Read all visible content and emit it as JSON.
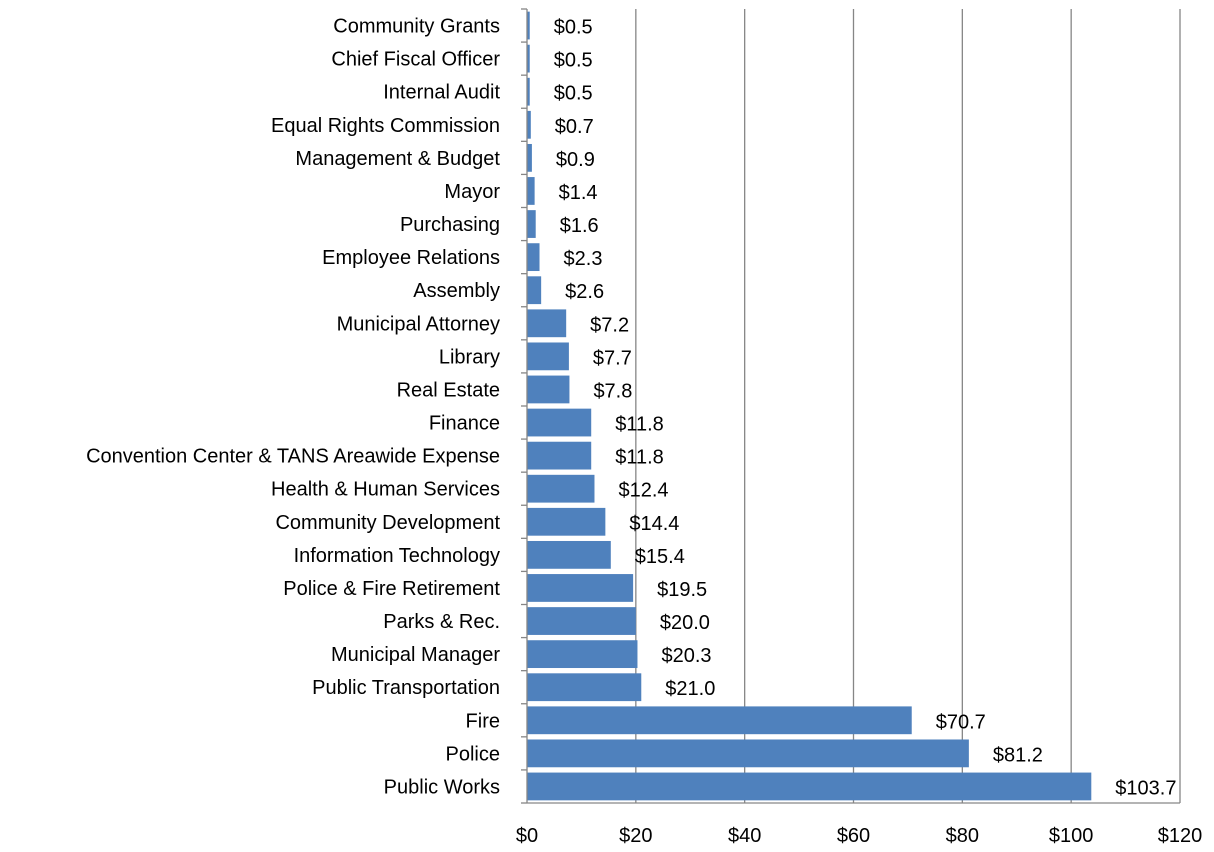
{
  "chart_data": {
    "type": "bar",
    "orientation": "horizontal",
    "title": "",
    "xlabel": "",
    "ylabel": "",
    "xlim": [
      0,
      120
    ],
    "x_ticks": [
      0,
      20,
      40,
      60,
      80,
      100,
      120
    ],
    "x_tick_labels": [
      "$0",
      "$20",
      "$40",
      "$60",
      "$80",
      "$100",
      "$120"
    ],
    "grid": "vertical",
    "legend": "none",
    "bar_color": "#4F81BD",
    "categories": [
      "Community Grants",
      "Chief Fiscal Officer",
      "Internal Audit",
      "Equal Rights Commission",
      "Management & Budget",
      "Mayor",
      "Purchasing",
      "Employee Relations",
      "Assembly",
      "Municipal Attorney",
      "Library",
      "Real Estate",
      "Finance",
      "Convention Center & TANS Areawide Expense",
      "Health & Human Services",
      "Community Development",
      "Information Technology",
      "Police & Fire Retirement",
      "Parks & Rec.",
      "Municipal Manager",
      "Public Transportation",
      "Fire",
      "Police",
      "Public Works"
    ],
    "values": [
      0.5,
      0.5,
      0.5,
      0.7,
      0.9,
      1.4,
      1.6,
      2.3,
      2.6,
      7.2,
      7.7,
      7.8,
      11.8,
      11.8,
      12.4,
      14.4,
      15.4,
      19.5,
      20.0,
      20.3,
      21.0,
      70.7,
      81.2,
      103.7
    ],
    "value_labels": [
      "$0.5",
      "$0.5",
      "$0.5",
      "$0.7",
      "$0.9",
      "$1.4",
      "$1.6",
      "$2.3",
      "$2.6",
      "$7.2",
      "$7.7",
      "$7.8",
      "$11.8",
      "$11.8",
      "$12.4",
      "$14.4",
      "$15.4",
      "$19.5",
      "$20.0",
      "$20.3",
      "$21.0",
      "$70.7",
      "$81.2",
      "$103.7"
    ]
  }
}
